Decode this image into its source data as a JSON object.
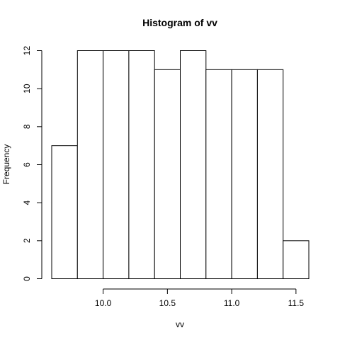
{
  "chart_data": {
    "type": "bar",
    "title": "Histogram of vv",
    "xlabel": "vv",
    "ylabel": "Frequency",
    "bins": [
      {
        "start": 9.6,
        "end": 9.8,
        "count": 7
      },
      {
        "start": 9.8,
        "end": 10.0,
        "count": 12
      },
      {
        "start": 10.0,
        "end": 10.2,
        "count": 12
      },
      {
        "start": 10.2,
        "end": 10.4,
        "count": 12
      },
      {
        "start": 10.4,
        "end": 10.6,
        "count": 11
      },
      {
        "start": 10.6,
        "end": 10.8,
        "count": 12
      },
      {
        "start": 10.8,
        "end": 11.0,
        "count": 11
      },
      {
        "start": 11.0,
        "end": 11.2,
        "count": 11
      },
      {
        "start": 11.2,
        "end": 11.4,
        "count": 11
      },
      {
        "start": 11.4,
        "end": 11.6,
        "count": 2
      }
    ],
    "xlim": [
      9.6,
      11.6
    ],
    "ylim": [
      0,
      12
    ],
    "x_ticks": [
      10.0,
      10.5,
      11.0,
      11.5
    ],
    "x_tick_labels": [
      "10.0",
      "10.5",
      "11.0",
      "11.5"
    ],
    "y_ticks": [
      0,
      2,
      4,
      6,
      8,
      10,
      12
    ],
    "y_tick_labels": [
      "0",
      "2",
      "4",
      "6",
      "8",
      "10",
      "12"
    ],
    "grid": false,
    "legend": "none"
  }
}
